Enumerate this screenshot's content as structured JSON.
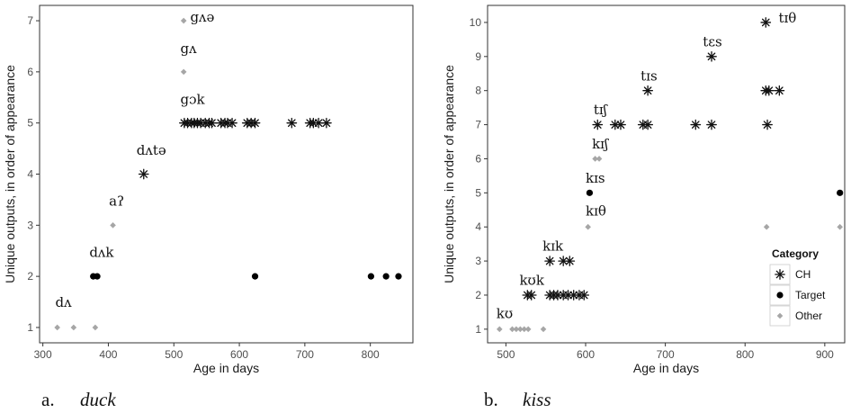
{
  "chart_data": [
    {
      "type": "scatter",
      "panel_letter": "a.",
      "panel_word": "duck",
      "xlabel": "Age in days",
      "ylabel": "Unique outputs, in order of appearance",
      "xlim": [
        295,
        865
      ],
      "ylim": [
        0.7,
        7.3
      ],
      "xticks": [
        300,
        400,
        500,
        600,
        700,
        800
      ],
      "yticks": [
        1,
        2,
        3,
        4,
        5,
        6,
        7
      ],
      "grid": false,
      "legend": null,
      "series": [
        {
          "category": "CH",
          "points": [
            [
              454,
              4
            ],
            [
              516,
              5
            ],
            [
              521,
              5
            ],
            [
              527,
              5
            ],
            [
              531,
              5
            ],
            [
              536,
              5
            ],
            [
              541,
              5
            ],
            [
              548,
              5
            ],
            [
              554,
              5
            ],
            [
              558,
              5
            ],
            [
              572,
              5
            ],
            [
              578,
              5
            ],
            [
              582,
              5
            ],
            [
              589,
              5
            ],
            [
              612,
              5
            ],
            [
              618,
              5
            ],
            [
              624,
              5
            ],
            [
              680,
              5
            ],
            [
              708,
              5
            ],
            [
              713,
              5
            ],
            [
              721,
              5
            ],
            [
              733,
              5
            ]
          ]
        },
        {
          "category": "Target",
          "points": [
            [
              377,
              2
            ],
            [
              383,
              2
            ],
            [
              624,
              2
            ],
            [
              801,
              2
            ],
            [
              824,
              2
            ],
            [
              843,
              2
            ]
          ]
        },
        {
          "category": "Other",
          "points": [
            [
              322,
              1
            ],
            [
              347,
              1
            ],
            [
              380,
              1
            ],
            [
              407,
              3
            ],
            [
              515,
              6
            ],
            [
              515,
              7
            ]
          ]
        }
      ],
      "annotations": [
        {
          "text": "dʌ",
          "x": 319,
          "y": 1.4
        },
        {
          "text": "dʌk",
          "x": 371,
          "y": 2.38
        },
        {
          "text": "aʔ",
          "x": 401,
          "y": 3.38
        },
        {
          "text": "dʌtə",
          "x": 443,
          "y": 4.38
        },
        {
          "text": "gɔk",
          "x": 510,
          "y": 5.37
        },
        {
          "text": "gʌ",
          "x": 510,
          "y": 6.37
        },
        {
          "text": "gʌə",
          "x": 525,
          "y": 6.98
        }
      ]
    },
    {
      "type": "scatter",
      "panel_letter": "b.",
      "panel_word": "kiss",
      "xlabel": "Age in days",
      "ylabel": "Unique outputs, in order of appearance",
      "xlim": [
        477,
        925
      ],
      "ylim": [
        0.6,
        10.5
      ],
      "xticks": [
        500,
        600,
        700,
        800,
        900
      ],
      "yticks": [
        1,
        2,
        3,
        4,
        5,
        6,
        7,
        8,
        9,
        10
      ],
      "grid": false,
      "legend": {
        "title": "Category",
        "position": "bottom-right",
        "entries": [
          {
            "label": "CH",
            "shape": "asterisk"
          },
          {
            "label": "Target",
            "shape": "circle"
          },
          {
            "label": "Other",
            "shape": "diamond"
          }
        ]
      },
      "series": [
        {
          "category": "CH",
          "points": [
            [
              527,
              2
            ],
            [
              532,
              2
            ],
            [
              555,
              2
            ],
            [
              560,
              2
            ],
            [
              565,
              2
            ],
            [
              572,
              2
            ],
            [
              578,
              2
            ],
            [
              585,
              2
            ],
            [
              592,
              2
            ],
            [
              598,
              2
            ],
            [
              555,
              3
            ],
            [
              572,
              3
            ],
            [
              580,
              3
            ],
            [
              615,
              7
            ],
            [
              637,
              7
            ],
            [
              644,
              7
            ],
            [
              672,
              7
            ],
            [
              678,
              7
            ],
            [
              738,
              7
            ],
            [
              758,
              7
            ],
            [
              828,
              7
            ],
            [
              678,
              8
            ],
            [
              826,
              8
            ],
            [
              830,
              8
            ],
            [
              843,
              8
            ],
            [
              758,
              9
            ],
            [
              826,
              10
            ]
          ]
        },
        {
          "category": "Target",
          "points": [
            [
              605,
              5
            ],
            [
              919,
              5
            ]
          ]
        },
        {
          "category": "Other",
          "points": [
            [
              492,
              1
            ],
            [
              508,
              1
            ],
            [
              513,
              1
            ],
            [
              518,
              1
            ],
            [
              523,
              1
            ],
            [
              528,
              1
            ],
            [
              547,
              1
            ],
            [
              603,
              4
            ],
            [
              612,
              6
            ],
            [
              617,
              6
            ],
            [
              827,
              4
            ],
            [
              919,
              4
            ]
          ]
        }
      ],
      "annotations": [
        {
          "text": "kʊ",
          "x": 488,
          "y": 1.33
        },
        {
          "text": "kʊk",
          "x": 517,
          "y": 2.3
        },
        {
          "text": "kɪk",
          "x": 546,
          "y": 3.3
        },
        {
          "text": "kɪθ",
          "x": 600,
          "y": 4.33
        },
        {
          "text": "kɪs",
          "x": 600,
          "y": 5.3
        },
        {
          "text": "kɪʃ",
          "x": 608,
          "y": 6.3
        },
        {
          "text": "tɪʃ",
          "x": 610,
          "y": 7.3
        },
        {
          "text": "tɪs",
          "x": 669,
          "y": 8.3
        },
        {
          "text": "tɛs",
          "x": 747,
          "y": 9.3
        },
        {
          "text": "tɪθ",
          "x": 842,
          "y": 10.0
        }
      ]
    }
  ],
  "colors": {
    "CH": "#111111",
    "Target": "#000000",
    "Other": "#a6a6a6",
    "panel_border": "#333333",
    "tick_label": "#4d4d4d"
  }
}
